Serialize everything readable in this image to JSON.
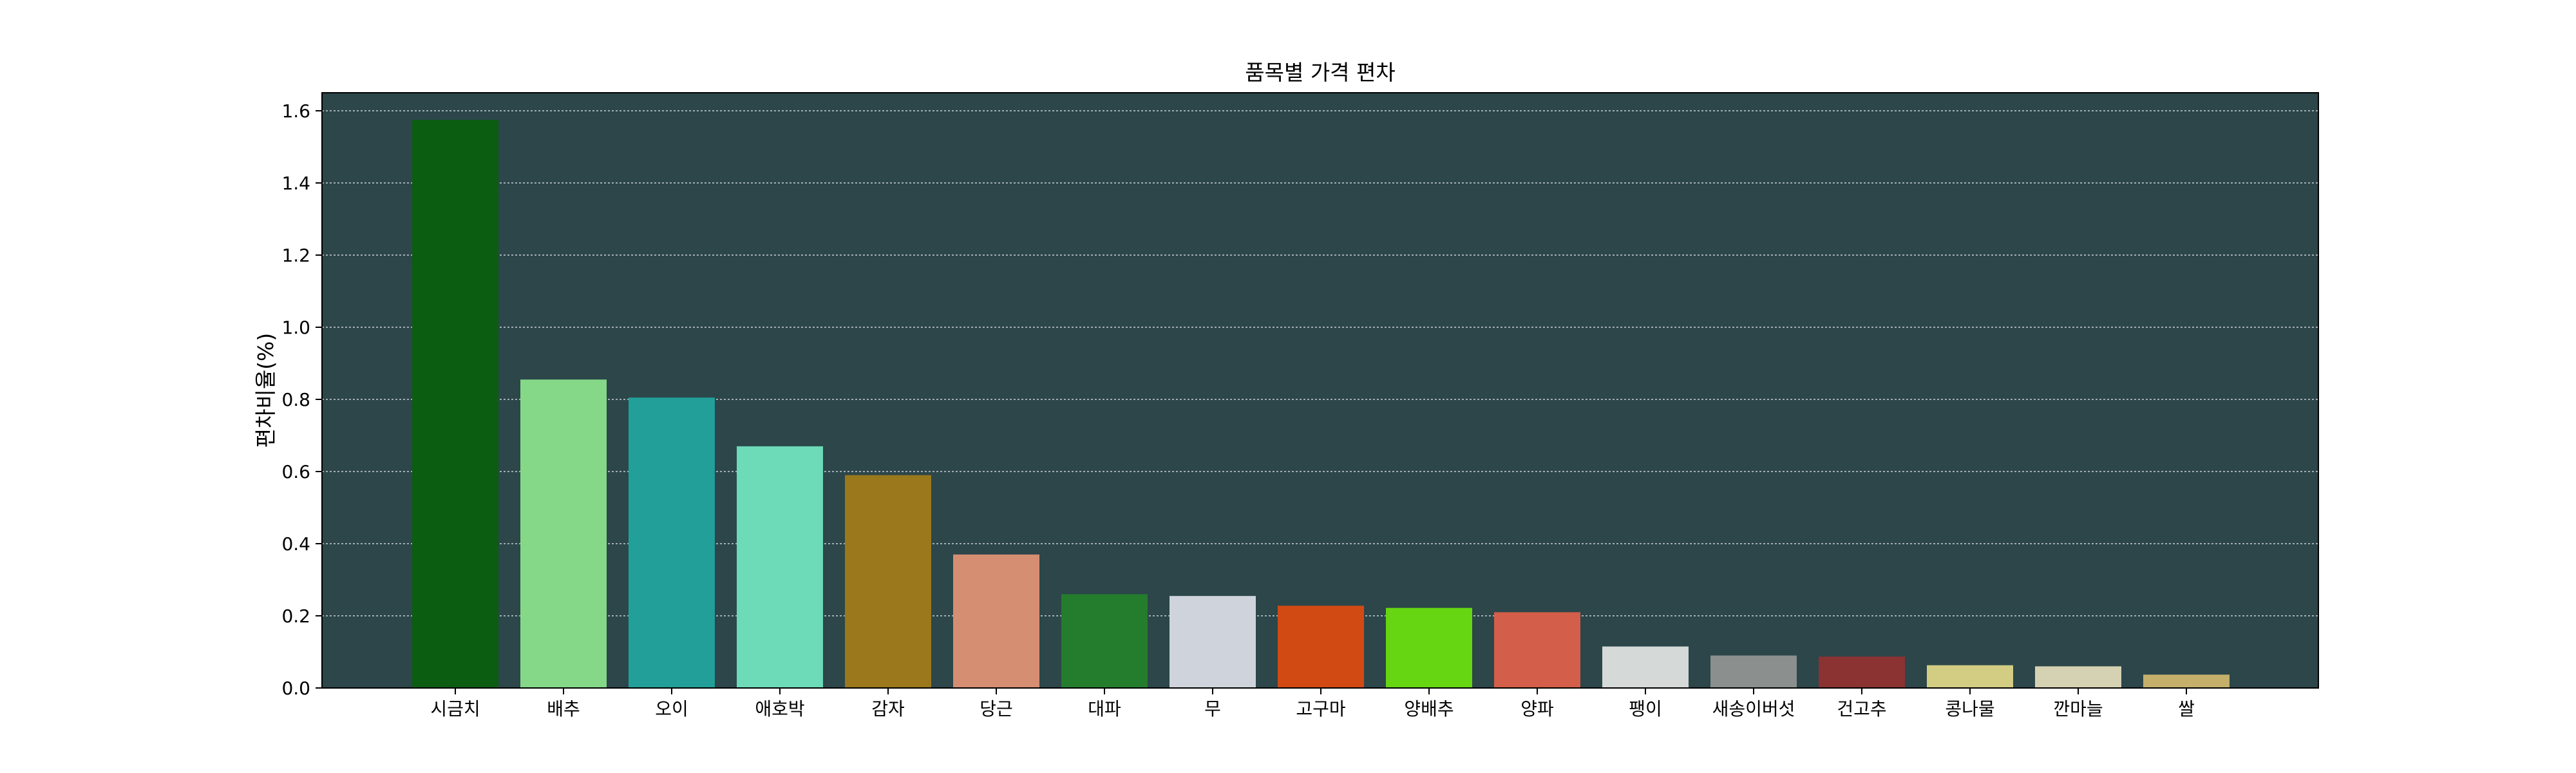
{
  "chart_data": {
    "type": "bar",
    "title": "품목별 가격 편차",
    "xlabel": "",
    "ylabel": "편차비율(%)",
    "ylim": [
      0,
      1.65
    ],
    "yticks": [
      "0.0",
      "0.2",
      "0.4",
      "0.6",
      "0.8",
      "1.0",
      "1.2",
      "1.4",
      "1.6"
    ],
    "grid": true,
    "background": "#2c464a",
    "categories": [
      "시금치",
      "배추",
      "오이",
      "애호박",
      "감자",
      "당근",
      "대파",
      "무",
      "고구마",
      "양배추",
      "양파",
      "팽이",
      "새송이버섯",
      "건고추",
      "콩나물",
      "깐마늘",
      "쌀"
    ],
    "values": [
      1.575,
      0.855,
      0.805,
      0.67,
      0.59,
      0.37,
      0.26,
      0.255,
      0.228,
      0.222,
      0.21,
      0.115,
      0.09,
      0.087,
      0.063,
      0.06,
      0.037
    ],
    "colors": [
      "#0b5d12",
      "#84d888",
      "#229f99",
      "#6ddab8",
      "#9a781b",
      "#d68e72",
      "#247d2c",
      "#cfd4dc",
      "#d24a13",
      "#67d612",
      "#d35e4a",
      "#d5d9d7",
      "#8b8f8d",
      "#8b3232",
      "#d2cd82",
      "#d5d1b3",
      "#c4b06b"
    ]
  }
}
